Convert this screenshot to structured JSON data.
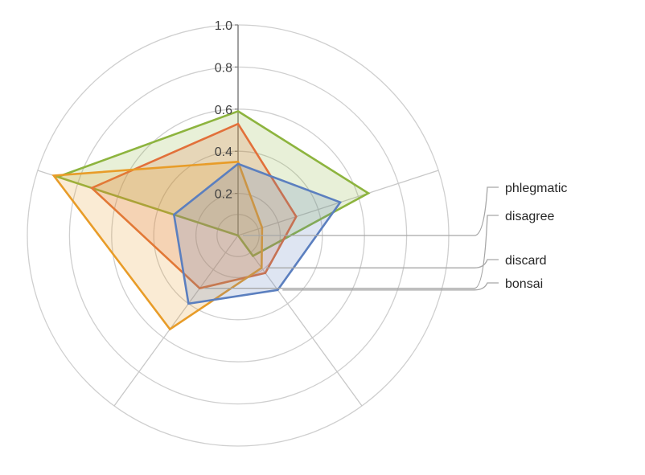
{
  "chart_data": {
    "type": "radar",
    "axes": [
      "",
      "",
      "",
      "",
      ""
    ],
    "r_ticks": [
      "0.2",
      "0.4",
      "0.6",
      "0.8",
      "1.0"
    ],
    "r_range": [
      0,
      1.0
    ],
    "grid": true,
    "legend": "right (leader-line labels)",
    "series": [
      {
        "name": "phlegmatic",
        "color": "#8db43e",
        "values": [
          0.59,
          0.65,
          0.12,
          0.0,
          0.9
        ]
      },
      {
        "name": "disagree",
        "color": "#e2703a",
        "values": [
          0.53,
          0.29,
          0.22,
          0.31,
          0.73
        ]
      },
      {
        "name": "discard",
        "color": "#e89c28",
        "values": [
          0.35,
          0.12,
          0.19,
          0.55,
          0.92
        ]
      },
      {
        "name": "bonsai",
        "color": "#5b7fbf",
        "values": [
          0.34,
          0.51,
          0.32,
          0.4,
          0.32
        ]
      }
    ]
  }
}
